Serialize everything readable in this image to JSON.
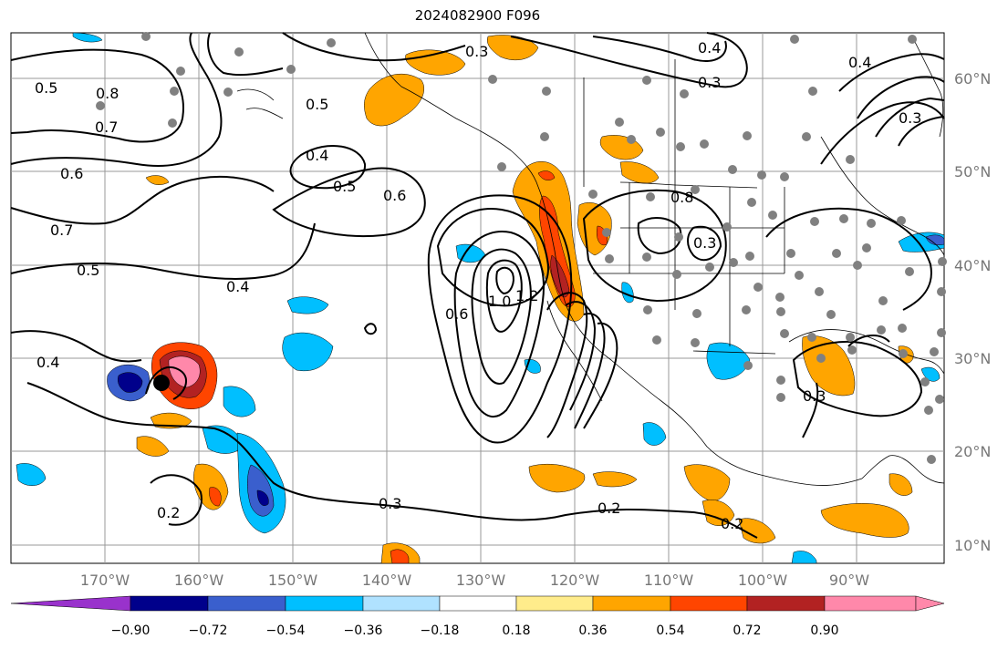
{
  "title": "2024082900 F096",
  "map": {
    "lat_labels": [
      "60°N",
      "50°N",
      "40°N",
      "30°N",
      "20°N",
      "10°N"
    ],
    "lon_labels": [
      "170°W",
      "160°W",
      "150°W",
      "140°W",
      "130°W",
      "120°W",
      "110°W",
      "100°W",
      "90°W"
    ],
    "contour_labels": [
      "0.3",
      "0.4",
      "0.5",
      "0.6",
      "0.7",
      "0.8",
      "1.0",
      "1.2",
      "0.2"
    ],
    "storm_marker": "black-circle"
  },
  "colorbar": {
    "tick_labels": [
      "−0.90",
      "−0.72",
      "−0.54",
      "−0.36",
      "−0.18",
      "0.18",
      "0.36",
      "0.54",
      "0.72",
      "0.90"
    ],
    "colors": [
      "#9932cc",
      "#00008b",
      "#3a5fcd",
      "#00bfff",
      "#b0e2ff",
      "#ffffff",
      "#ffec8b",
      "#ffa500",
      "#ff4500",
      "#b22222",
      "#ff88aa"
    ]
  }
}
